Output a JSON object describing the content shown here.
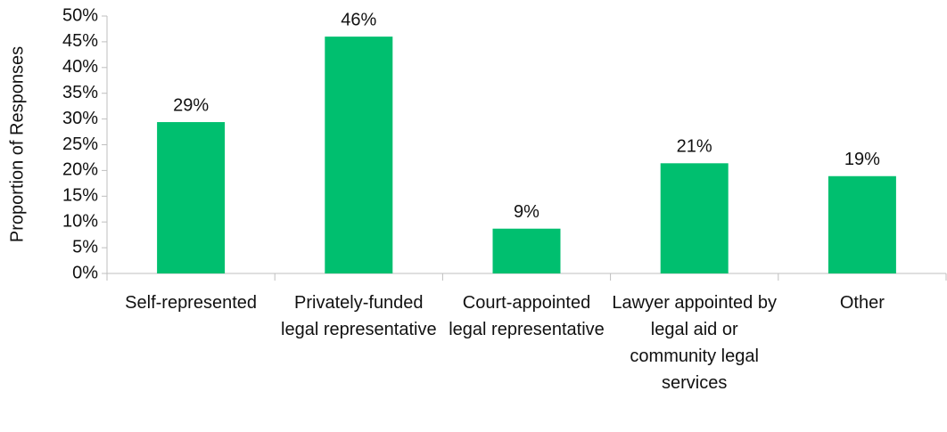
{
  "chart_data": {
    "type": "bar",
    "y_axis_label": "Proportion of Responses",
    "categories": [
      "Self-represented",
      "Privately-funded legal representative",
      "Court-appointed legal representative",
      "Lawyer appointed by legal aid or community legal services",
      "Other"
    ],
    "values": [
      29.4,
      46.0,
      8.7,
      21.4,
      18.9
    ],
    "value_labels": [
      "29%",
      "46%",
      "9%",
      "21%",
      "19%"
    ],
    "color": "#00bf6f",
    "ylim": [
      0,
      50
    ],
    "yticks": [
      {
        "value": 0,
        "label": "0%"
      },
      {
        "value": 5,
        "label": "5%"
      },
      {
        "value": 10,
        "label": "10%"
      },
      {
        "value": 15,
        "label": "15%"
      },
      {
        "value": 20,
        "label": "20%"
      },
      {
        "value": 25,
        "label": "25%"
      },
      {
        "value": 30,
        "label": "30%"
      },
      {
        "value": 35,
        "label": "35%"
      },
      {
        "value": 40,
        "label": "40%"
      },
      {
        "value": 45,
        "label": "45%"
      },
      {
        "value": 50,
        "label": "50%"
      }
    ],
    "grid": false
  }
}
